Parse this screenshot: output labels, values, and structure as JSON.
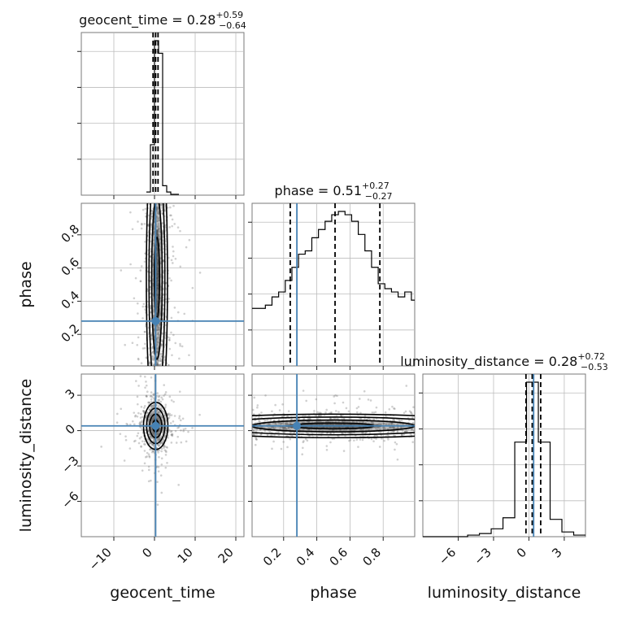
{
  "chart_data": {
    "type": "corner",
    "parameters": [
      "geocent_time",
      "phase",
      "luminosity_distance"
    ],
    "axis_labels": {
      "geocent_time": "geocent_time",
      "phase": "phase",
      "luminosity_distance": "luminosity_distance"
    },
    "ranges": {
      "geocent_time": [
        -18,
        22
      ],
      "phase": [
        0.01,
        0.99
      ],
      "luminosity_distance": [
        -9,
        4.8
      ]
    },
    "ticks": {
      "geocent_time": {
        "values": [
          -10,
          0,
          10,
          20
        ],
        "labels": [
          "−10",
          "0",
          "10",
          "20"
        ]
      },
      "phase": {
        "values": [
          0.2,
          0.4,
          0.6,
          0.8
        ],
        "labels": [
          "0.2",
          "0.4",
          "0.6",
          "0.8"
        ]
      },
      "luminosity_distance": {
        "values": [
          -6,
          -3,
          0,
          3
        ],
        "labels": [
          "−6",
          "−3",
          "0",
          "3"
        ]
      }
    },
    "truths": {
      "geocent_time": 0.28,
      "phase": 0.28,
      "luminosity_distance": 0.4
    },
    "titles": [
      {
        "param": "geocent_time",
        "prefix": "geocent_time = ",
        "median": "0.28",
        "plus": "+0.59",
        "minus": "−0.64"
      },
      {
        "param": "phase",
        "prefix": "phase = ",
        "median": "0.51",
        "plus": "+0.27",
        "minus": "−0.27"
      },
      {
        "param": "luminosity_distance",
        "prefix": "luminosity_distance = ",
        "median": "0.28",
        "plus": "+0.72",
        "minus": "−0.53"
      }
    ],
    "quantiles": {
      "geocent_time": [
        -0.36,
        0.28,
        0.87
      ],
      "phase": [
        0.24,
        0.51,
        0.78
      ],
      "luminosity_distance": [
        -0.25,
        0.28,
        1.0
      ]
    },
    "histograms": {
      "geocent_time": {
        "edges": [
          -2,
          -1,
          0,
          1,
          2,
          3,
          4,
          6
        ],
        "counts": [
          0.02,
          0.32,
          0.98,
          0.9,
          0.06,
          0.02,
          0.005
        ]
      },
      "phase": {
        "edges": [
          0.01,
          0.05,
          0.09,
          0.13,
          0.17,
          0.21,
          0.25,
          0.29,
          0.33,
          0.37,
          0.41,
          0.45,
          0.49,
          0.53,
          0.57,
          0.61,
          0.65,
          0.69,
          0.73,
          0.77,
          0.81,
          0.85,
          0.89,
          0.93,
          0.97,
          0.99
        ],
        "counts": [
          0.35,
          0.35,
          0.37,
          0.42,
          0.45,
          0.52,
          0.6,
          0.68,
          0.7,
          0.78,
          0.83,
          0.88,
          0.92,
          0.94,
          0.92,
          0.88,
          0.8,
          0.7,
          0.6,
          0.5,
          0.47,
          0.45,
          0.42,
          0.45,
          0.4
        ]
      },
      "luminosity_distance": {
        "edges": [
          -9,
          -5.2,
          -4.2,
          -3.2,
          -2.2,
          -1.2,
          -0.2,
          0.8,
          1.8,
          2.8,
          3.8,
          4.8
        ],
        "counts": [
          0.0,
          0.01,
          0.02,
          0.05,
          0.12,
          0.6,
          0.98,
          0.6,
          0.11,
          0.03,
          0.01
        ]
      }
    },
    "contours_2d": {
      "geocent_time_vs_phase": {
        "center": [
          0.6,
          0.54
        ],
        "sigma": [
          1.3,
          0.32
        ]
      },
      "geocent_time_vs_luminosity_distance": {
        "center": [
          0.3,
          0.4
        ],
        "sigma": [
          1.5,
          1.0
        ]
      },
      "phase_vs_luminosity_distance": {
        "center": [
          0.5,
          0.4
        ],
        "sigma": [
          0.6,
          0.5
        ]
      }
    }
  }
}
